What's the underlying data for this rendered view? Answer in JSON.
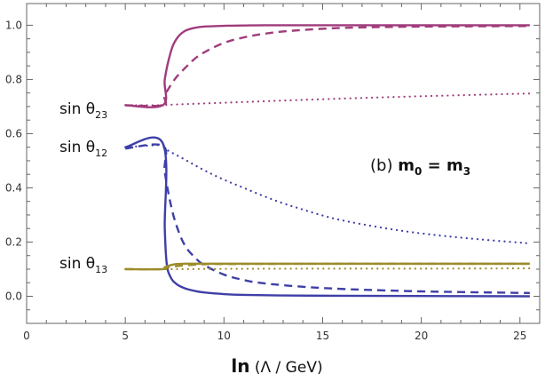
{
  "chart_data": {
    "type": "line",
    "xlabel_bold": "ln",
    "xlabel_rest": " (Λ / GeV)",
    "xlim": [
      0,
      26
    ],
    "ylim": [
      -0.1,
      1.08
    ],
    "xticks": [
      0,
      5,
      10,
      15,
      20,
      25
    ],
    "xtick_labels": [
      "0",
      "5",
      "10",
      "15",
      "20",
      "25"
    ],
    "yticks": [
      0.0,
      0.2,
      0.4,
      0.6,
      0.8,
      1.0
    ],
    "ytick_labels": [
      "0.0",
      "0.2",
      "0.4",
      "0.6",
      "0.8",
      "1.0"
    ],
    "grid": false,
    "annotation": {
      "prefix": "(b) ",
      "m0_main": "m",
      "m0_sub": "0",
      "eq": " = ",
      "m3_main": "m",
      "m3_sub": "3"
    },
    "curve_labels": [
      {
        "main": "sin θ",
        "sub": "23"
      },
      {
        "main": "sin θ",
        "sub": "12"
      },
      {
        "main": "sin θ",
        "sub": "13"
      }
    ],
    "colors": {
      "theta23": "#a03c7c",
      "theta12": "#3f3fa8",
      "theta13": "#9c8c2c"
    },
    "series": [
      {
        "name": "sin θ23 solid",
        "style": "solid",
        "color": "#a03c7c",
        "x": [
          5,
          6.9,
          7.0,
          7.3,
          7.6,
          8.0,
          8.5,
          9.0,
          10,
          11,
          12,
          15,
          20,
          25.5
        ],
        "y": [
          0.705,
          0.705,
          0.8,
          0.9,
          0.95,
          0.978,
          0.99,
          0.995,
          0.998,
          0.999,
          1.0,
          1.0,
          1.0,
          1.0
        ]
      },
      {
        "name": "sin θ23 dashed",
        "style": "dashed",
        "color": "#a03c7c",
        "x": [
          5,
          6.9,
          7.0,
          7.5,
          8.0,
          8.5,
          9.0,
          10,
          11,
          12,
          13,
          15,
          17,
          20,
          25.5
        ],
        "y": [
          0.705,
          0.705,
          0.74,
          0.8,
          0.84,
          0.875,
          0.9,
          0.935,
          0.955,
          0.968,
          0.977,
          0.987,
          0.992,
          0.995,
          0.997
        ]
      },
      {
        "name": "sin θ23 dotted",
        "style": "dotted",
        "color": "#a03c7c",
        "x": [
          5,
          6.9,
          7.0,
          10,
          15,
          20,
          25.5
        ],
        "y": [
          0.705,
          0.705,
          0.706,
          0.714,
          0.727,
          0.738,
          0.748
        ]
      },
      {
        "name": "sin θ12 solid",
        "style": "solid",
        "color": "#3f3fa8",
        "x": [
          5,
          6.9,
          7.0,
          7.1,
          7.3,
          7.6,
          8.0,
          8.5,
          9.0,
          10,
          11,
          13,
          15,
          20,
          25.5
        ],
        "y": [
          0.55,
          0.565,
          0.25,
          0.12,
          0.07,
          0.045,
          0.03,
          0.02,
          0.014,
          0.008,
          0.005,
          0.003,
          0.002,
          0.001,
          0.0
        ]
      },
      {
        "name": "sin θ12 dashed",
        "style": "dashed",
        "color": "#3f3fa8",
        "x": [
          5,
          6.9,
          7.0,
          7.3,
          7.6,
          8.0,
          8.5,
          9.0,
          10,
          11,
          12,
          14,
          16,
          18,
          20,
          22.5,
          25.5
        ],
        "y": [
          0.545,
          0.555,
          0.46,
          0.34,
          0.26,
          0.19,
          0.145,
          0.115,
          0.08,
          0.06,
          0.048,
          0.035,
          0.027,
          0.022,
          0.018,
          0.015,
          0.012
        ]
      },
      {
        "name": "sin θ12 dotted",
        "style": "dotted",
        "color": "#3f3fa8",
        "x": [
          5,
          6.9,
          7.0,
          8,
          9,
          10,
          11,
          12,
          13,
          14,
          15,
          16,
          18,
          20,
          22.5,
          25.5
        ],
        "y": [
          0.55,
          0.558,
          0.545,
          0.505,
          0.465,
          0.43,
          0.4,
          0.37,
          0.343,
          0.32,
          0.298,
          0.28,
          0.253,
          0.232,
          0.213,
          0.195
        ]
      },
      {
        "name": "sin θ13 solid",
        "style": "solid",
        "color": "#9c8c2c",
        "x": [
          5,
          6.9,
          7.0,
          7.3,
          7.6,
          8.0,
          9,
          10,
          15,
          20,
          25.5
        ],
        "y": [
          0.1,
          0.1,
          0.107,
          0.115,
          0.119,
          0.12,
          0.12,
          0.12,
          0.12,
          0.12,
          0.12
        ]
      },
      {
        "name": "sin θ13 dashed",
        "style": "dashed",
        "color": "#9c8c2c",
        "x": [
          5,
          6.9,
          7.0,
          7.5,
          8.0,
          9.0,
          10,
          15,
          20,
          25.5
        ],
        "y": [
          0.1,
          0.1,
          0.104,
          0.11,
          0.114,
          0.118,
          0.119,
          0.12,
          0.12,
          0.12
        ]
      },
      {
        "name": "sin θ13 dotted",
        "style": "dotted",
        "color": "#9c8c2c",
        "x": [
          5,
          6.9,
          7.0,
          10,
          15,
          20,
          25.5
        ],
        "y": [
          0.1,
          0.1,
          0.1,
          0.101,
          0.102,
          0.102,
          0.103
        ]
      }
    ]
  }
}
